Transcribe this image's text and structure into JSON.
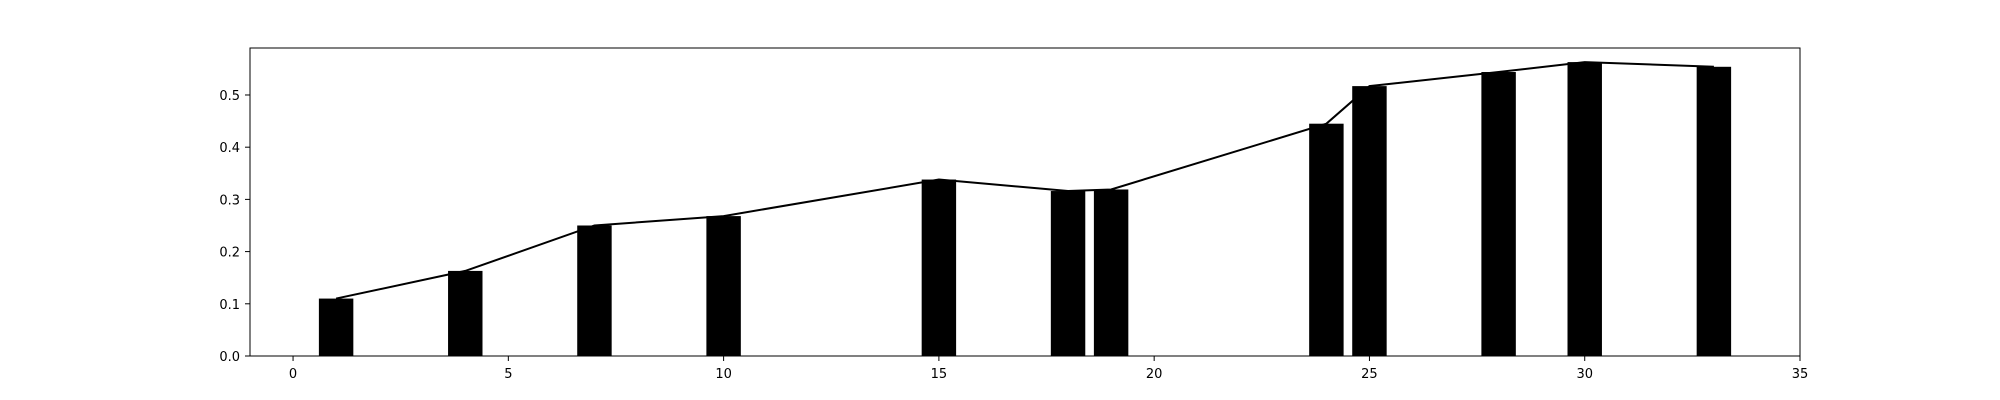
{
  "chart_data": {
    "type": "bar",
    "title": "",
    "xlabel": "",
    "ylabel": "",
    "xlim": [
      -1,
      35
    ],
    "ylim": [
      0,
      0.59
    ],
    "xticks": [
      0,
      5,
      10,
      15,
      20,
      25,
      30,
      35
    ],
    "xtick_labels": [
      "0",
      "5",
      "10",
      "15",
      "20",
      "25",
      "30",
      "35"
    ],
    "yticks": [
      0.0,
      0.1,
      0.2,
      0.3,
      0.4,
      0.5
    ],
    "ytick_labels": [
      "0.0",
      "0.1",
      "0.2",
      "0.3",
      "0.4",
      "0.5"
    ],
    "grid": false,
    "legend": "none",
    "bar_width": 0.8,
    "bar_color": "#000000",
    "line_color": "#000000",
    "x": [
      1,
      4,
      7,
      10,
      15,
      18,
      19,
      24,
      25,
      28,
      30,
      33
    ],
    "values": [
      0.11,
      0.163,
      0.25,
      0.268,
      0.338,
      0.316,
      0.319,
      0.445,
      0.517,
      0.544,
      0.563,
      0.554
    ],
    "line": {
      "x": [
        1,
        4,
        7,
        10,
        15,
        18,
        19,
        24,
        25,
        28,
        30,
        33
      ],
      "values": [
        0.11,
        0.163,
        0.25,
        0.268,
        0.338,
        0.316,
        0.319,
        0.445,
        0.517,
        0.544,
        0.563,
        0.554
      ]
    }
  }
}
